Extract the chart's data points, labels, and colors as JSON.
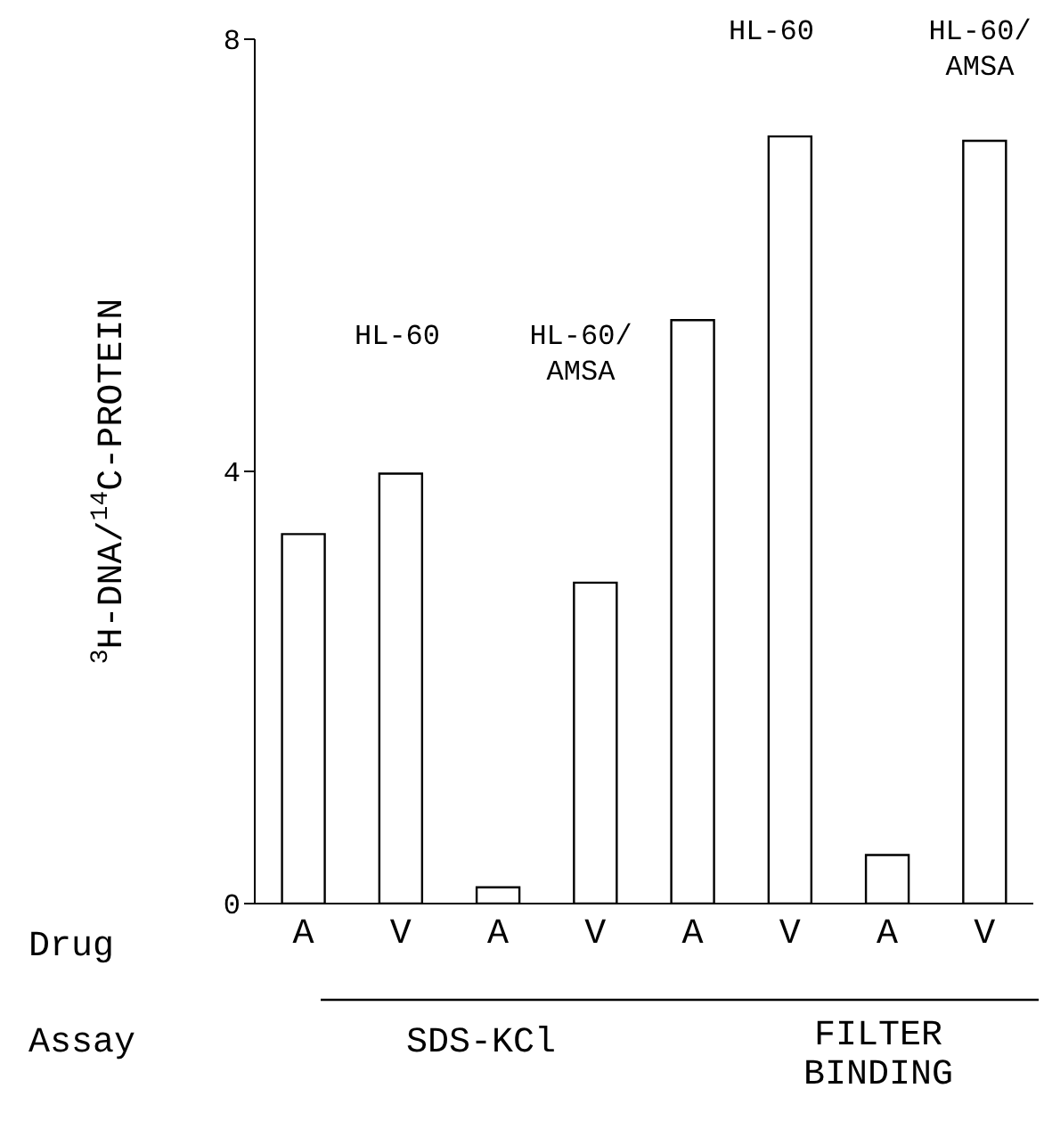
{
  "chart_data": {
    "type": "bar",
    "ylabel": "$^{3}$H-DNA/$^{14}$C-PROTEIN",
    "categories": [
      "A",
      "V",
      "A",
      "V",
      "A",
      "V",
      "A",
      "V"
    ],
    "series": [
      {
        "color": "#ffffff",
        "values": [
          3.42,
          3.98,
          0.15,
          2.97,
          5.4,
          7.1,
          0.45,
          7.06
        ]
      }
    ],
    "ylim": [
      0,
      8
    ],
    "yticks": [
      0,
      4,
      8
    ],
    "annotations": [
      "HL-60",
      "HL-60/ AMSA",
      "HL-60",
      "HL-60/ AMSA",
      "Drug",
      "Assay",
      "SDS-KCl",
      "FILTER BINDING"
    ]
  }
}
